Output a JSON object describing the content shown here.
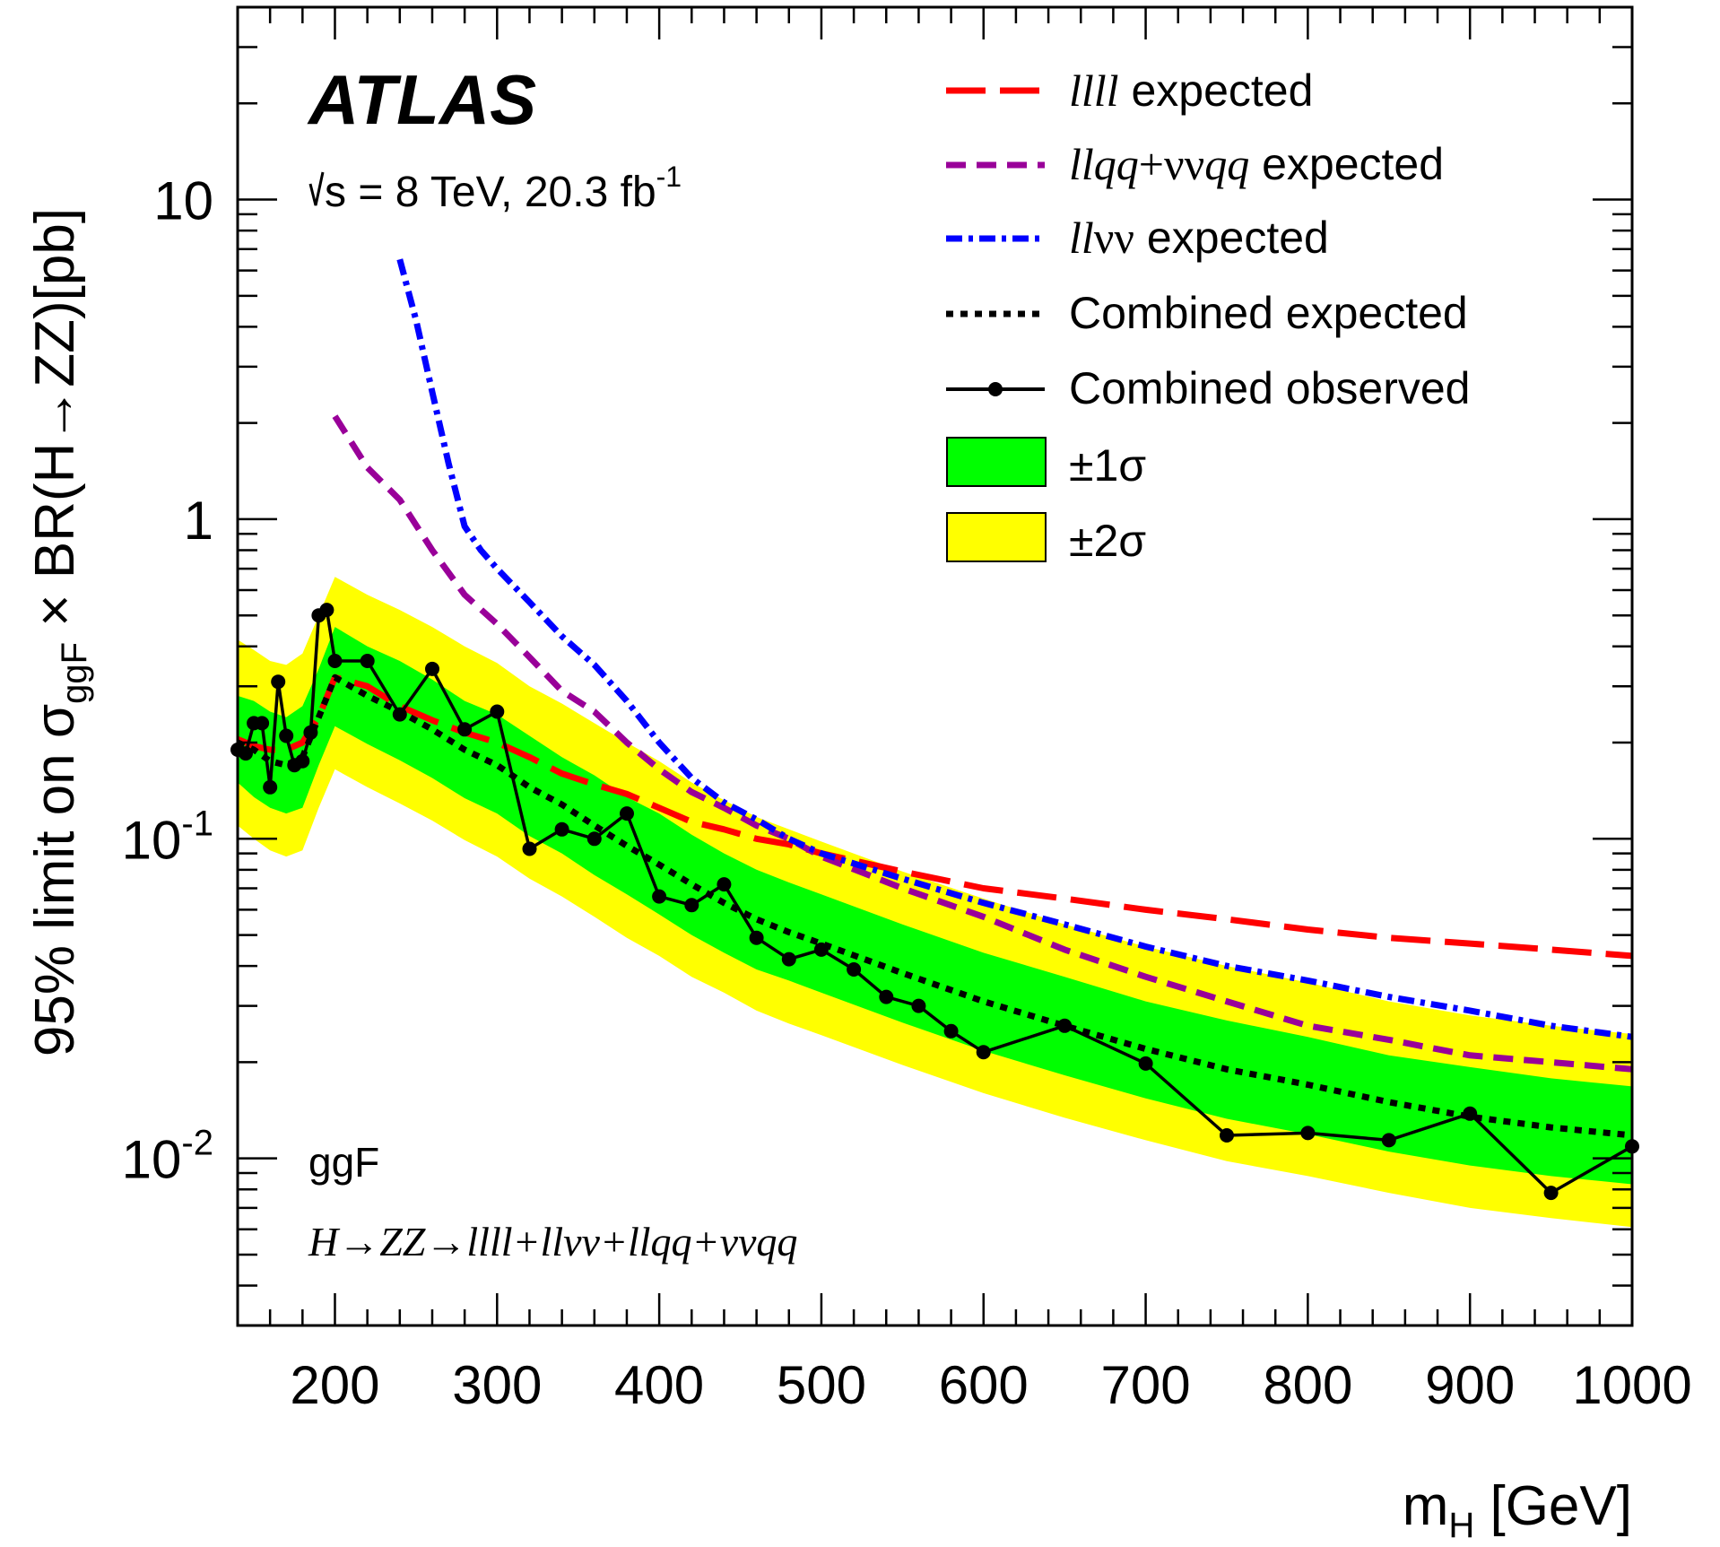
{
  "chart_data": {
    "type": "line",
    "yscale": "log",
    "xlim": [
      140,
      1000
    ],
    "ylim": [
      0.003,
      40
    ],
    "xlabel_main": "m",
    "xlabel_sub": "H",
    "xlabel_unit": " [GeV]",
    "ylabel_pre": "95% limit on σ",
    "ylabel_sub": "ggF",
    "ylabel_post": " × BR(H→ZZ)[pb]",
    "xticks": [
      200,
      300,
      400,
      500,
      600,
      700,
      800,
      900,
      1000
    ],
    "xtick_labels": [
      "200",
      "300",
      "400",
      "500",
      "600",
      "700",
      "800",
      "900",
      "1000"
    ],
    "yticks": [
      {
        "value": 10,
        "base": "10",
        "exp": ""
      },
      {
        "value": 1,
        "base": "1",
        "exp": ""
      },
      {
        "value": 0.1,
        "base": "10",
        "exp": "-1"
      },
      {
        "value": 0.01,
        "base": "10",
        "exp": "-2"
      }
    ],
    "annotations": {
      "experiment": "ATLAS",
      "sqrt_s": "s = 8 TeV, 20.3 fb",
      "sqrt_s_exp": "-1",
      "production": "ggF",
      "channel": "H→ZZ→llll+llνν+llqq+ννqq"
    },
    "legend": {
      "placement": "top-right",
      "entries": [
        {
          "key": "llll_expected",
          "label_it": "llll",
          "label_rest": " expected"
        },
        {
          "key": "llqq_expected",
          "label_it": "llqq",
          "label_mid": "+νν",
          "label_it2": "qq",
          "label_rest": " expected"
        },
        {
          "key": "llvv_expected",
          "label_it": "ll",
          "label_mid": "νν",
          "label_rest": " expected"
        },
        {
          "key": "combined_expected",
          "label_rest": "Combined expected"
        },
        {
          "key": "combined_observed",
          "label_rest": "Combined observed"
        },
        {
          "key": "band1",
          "label_rest": "±1σ"
        },
        {
          "key": "band2",
          "label_rest": "±2σ"
        }
      ]
    },
    "colors": {
      "band1": "#00ff00",
      "band2": "#ffff00",
      "llll": "#ff0000",
      "llqq": "#990099",
      "llvv": "#0000ff",
      "combined": "#000000"
    },
    "series": [
      {
        "name": "llll expected",
        "x": [
          140,
          150,
          160,
          170,
          180,
          190,
          200,
          220,
          240,
          260,
          280,
          300,
          320,
          340,
          360,
          380,
          400,
          420,
          440,
          460,
          480,
          500,
          550,
          600,
          650,
          700,
          750,
          800,
          850,
          900,
          950,
          1000
        ],
        "y": [
          0.205,
          0.195,
          0.19,
          0.19,
          0.2,
          0.24,
          0.32,
          0.3,
          0.26,
          0.235,
          0.215,
          0.2,
          0.18,
          0.16,
          0.148,
          0.138,
          0.125,
          0.113,
          0.107,
          0.1,
          0.096,
          0.09,
          0.079,
          0.07,
          0.065,
          0.06,
          0.056,
          0.052,
          0.049,
          0.047,
          0.045,
          0.043
        ]
      },
      {
        "name": "llqq+ννqq expected",
        "x": [
          200,
          220,
          240,
          260,
          280,
          300,
          320,
          340,
          360,
          380,
          400,
          420,
          440,
          460,
          480,
          500,
          550,
          600,
          650,
          700,
          750,
          800,
          850,
          900,
          950,
          1000
        ],
        "y": [
          2.1,
          1.45,
          1.15,
          0.8,
          0.58,
          0.47,
          0.37,
          0.29,
          0.25,
          0.2,
          0.165,
          0.14,
          0.125,
          0.11,
          0.1,
          0.088,
          0.07,
          0.057,
          0.045,
          0.037,
          0.031,
          0.026,
          0.0235,
          0.021,
          0.02,
          0.019
        ]
      },
      {
        "name": "llνν expected",
        "x": [
          240,
          250,
          260,
          270,
          280,
          290,
          300,
          320,
          340,
          360,
          380,
          400,
          420,
          440,
          460,
          480,
          500,
          550,
          600,
          650,
          700,
          750,
          800,
          850,
          900,
          950,
          1000
        ],
        "y": [
          6.5,
          4.2,
          2.5,
          1.5,
          0.95,
          0.8,
          0.7,
          0.55,
          0.43,
          0.35,
          0.27,
          0.2,
          0.155,
          0.13,
          0.115,
          0.1,
          0.09,
          0.075,
          0.063,
          0.054,
          0.046,
          0.04,
          0.036,
          0.032,
          0.029,
          0.026,
          0.024
        ]
      },
      {
        "name": "Combined expected",
        "x": [
          140,
          150,
          160,
          170,
          180,
          190,
          200,
          220,
          240,
          260,
          280,
          300,
          320,
          340,
          360,
          380,
          400,
          420,
          440,
          460,
          480,
          500,
          550,
          600,
          650,
          700,
          750,
          800,
          850,
          900,
          950,
          1000
        ],
        "y": [
          0.2,
          0.19,
          0.175,
          0.17,
          0.18,
          0.24,
          0.32,
          0.28,
          0.25,
          0.22,
          0.19,
          0.17,
          0.145,
          0.128,
          0.11,
          0.095,
          0.083,
          0.072,
          0.063,
          0.056,
          0.051,
          0.047,
          0.038,
          0.031,
          0.026,
          0.022,
          0.019,
          0.017,
          0.015,
          0.0135,
          0.0125,
          0.0118
        ]
      },
      {
        "name": "Combined observed",
        "x": [
          140,
          145,
          150,
          155,
          160,
          165,
          170,
          175,
          180,
          185,
          190,
          195,
          200,
          220,
          240,
          260,
          280,
          300,
          320,
          340,
          360,
          380,
          400,
          420,
          440,
          460,
          480,
          500,
          520,
          540,
          560,
          580,
          600,
          650,
          700,
          750,
          800,
          850,
          900,
          950,
          1000
        ],
        "y": [
          0.19,
          0.185,
          0.23,
          0.23,
          0.145,
          0.31,
          0.21,
          0.17,
          0.175,
          0.215,
          0.5,
          0.52,
          0.36,
          0.36,
          0.245,
          0.34,
          0.22,
          0.25,
          0.093,
          0.107,
          0.1,
          0.12,
          0.066,
          0.062,
          0.072,
          0.049,
          0.042,
          0.045,
          0.039,
          0.032,
          0.03,
          0.025,
          0.0215,
          0.026,
          0.0198,
          0.0118,
          0.012,
          0.0114,
          0.0138,
          0.0078,
          0.0109
        ]
      }
    ],
    "bands": {
      "x": [
        140,
        150,
        160,
        170,
        180,
        190,
        200,
        220,
        240,
        260,
        280,
        300,
        320,
        340,
        360,
        380,
        400,
        420,
        440,
        460,
        480,
        500,
        550,
        600,
        650,
        700,
        750,
        800,
        850,
        900,
        950,
        1000
      ],
      "sigma1_low": [
        0.15,
        0.135,
        0.125,
        0.12,
        0.125,
        0.17,
        0.225,
        0.198,
        0.176,
        0.155,
        0.134,
        0.12,
        0.102,
        0.09,
        0.077,
        0.067,
        0.058,
        0.05,
        0.044,
        0.039,
        0.036,
        0.033,
        0.0266,
        0.0217,
        0.0182,
        0.0154,
        0.0133,
        0.0119,
        0.0105,
        0.0095,
        0.0088,
        0.0083
      ],
      "sigma1_high": [
        0.28,
        0.27,
        0.25,
        0.24,
        0.26,
        0.34,
        0.46,
        0.4,
        0.36,
        0.315,
        0.27,
        0.245,
        0.21,
        0.18,
        0.158,
        0.135,
        0.12,
        0.103,
        0.09,
        0.08,
        0.073,
        0.067,
        0.054,
        0.044,
        0.037,
        0.031,
        0.027,
        0.024,
        0.021,
        0.0193,
        0.0178,
        0.0168
      ],
      "sigma2_low": [
        0.11,
        0.1,
        0.092,
        0.088,
        0.092,
        0.125,
        0.165,
        0.145,
        0.129,
        0.114,
        0.099,
        0.088,
        0.075,
        0.066,
        0.057,
        0.049,
        0.043,
        0.037,
        0.033,
        0.029,
        0.0264,
        0.0243,
        0.0196,
        0.016,
        0.0134,
        0.0114,
        0.0098,
        0.0088,
        0.0078,
        0.007,
        0.0065,
        0.0061
      ],
      "sigma2_high": [
        0.42,
        0.39,
        0.36,
        0.35,
        0.38,
        0.5,
        0.66,
        0.58,
        0.52,
        0.46,
        0.4,
        0.355,
        0.3,
        0.265,
        0.23,
        0.2,
        0.175,
        0.15,
        0.132,
        0.117,
        0.107,
        0.098,
        0.079,
        0.065,
        0.054,
        0.046,
        0.04,
        0.0355,
        0.031,
        0.028,
        0.026,
        0.0245
      ]
    }
  }
}
